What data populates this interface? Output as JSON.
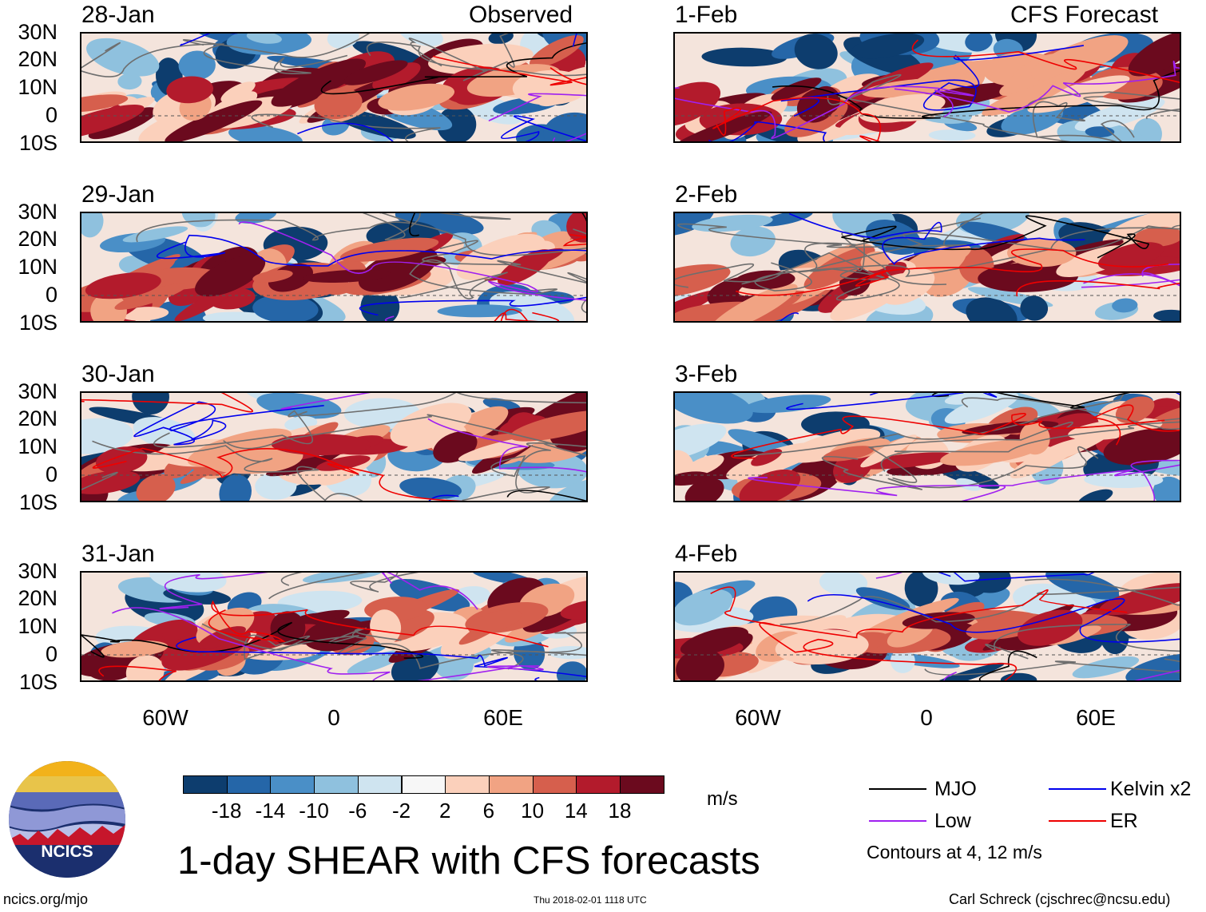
{
  "header": {
    "observed_label": "Observed",
    "forecast_label": "CFS Forecast"
  },
  "panels": {
    "observed": [
      {
        "date": "28-Jan"
      },
      {
        "date": "29-Jan"
      },
      {
        "date": "30-Jan"
      },
      {
        "date": "31-Jan"
      }
    ],
    "forecast": [
      {
        "date": "1-Feb"
      },
      {
        "date": "2-Feb"
      },
      {
        "date": "3-Feb"
      },
      {
        "date": "4-Feb"
      }
    ]
  },
  "axes": {
    "lat_labels": [
      "30N",
      "20N",
      "10N",
      "0",
      "10S"
    ],
    "lon_labels": [
      "60W",
      "0",
      "60E"
    ]
  },
  "colorbar": {
    "ticks": [
      "-18",
      "-14",
      "-10",
      "-6",
      "-2",
      "2",
      "6",
      "10",
      "14",
      "18"
    ],
    "colors": [
      "#0d3d6e",
      "#2566a8",
      "#4a8fc7",
      "#8fc1de",
      "#cfe4f0",
      "#f7f7f7",
      "#fbd0bb",
      "#f1a383",
      "#d65f4d",
      "#b31b2c",
      "#6b0a1e"
    ],
    "units": "m/s"
  },
  "legend": {
    "items": [
      {
        "label": "MJO",
        "color": "#000000"
      },
      {
        "label": "Kelvin x2",
        "color": "#0000ee"
      },
      {
        "label": "Low",
        "color": "#a020f0"
      },
      {
        "label": "ER",
        "color": "#ee0000"
      }
    ],
    "note": "Contours at 4, 12 m/s"
  },
  "title": "1-day SHEAR with CFS forecasts",
  "logo": {
    "text": "NCICS"
  },
  "footer": {
    "site": "ncics.org/mjo",
    "timestamp": "Thu 2018-02-01 1118 UTC",
    "author": "Carl Schreck (cjschrec@ncsu.edu)"
  }
}
